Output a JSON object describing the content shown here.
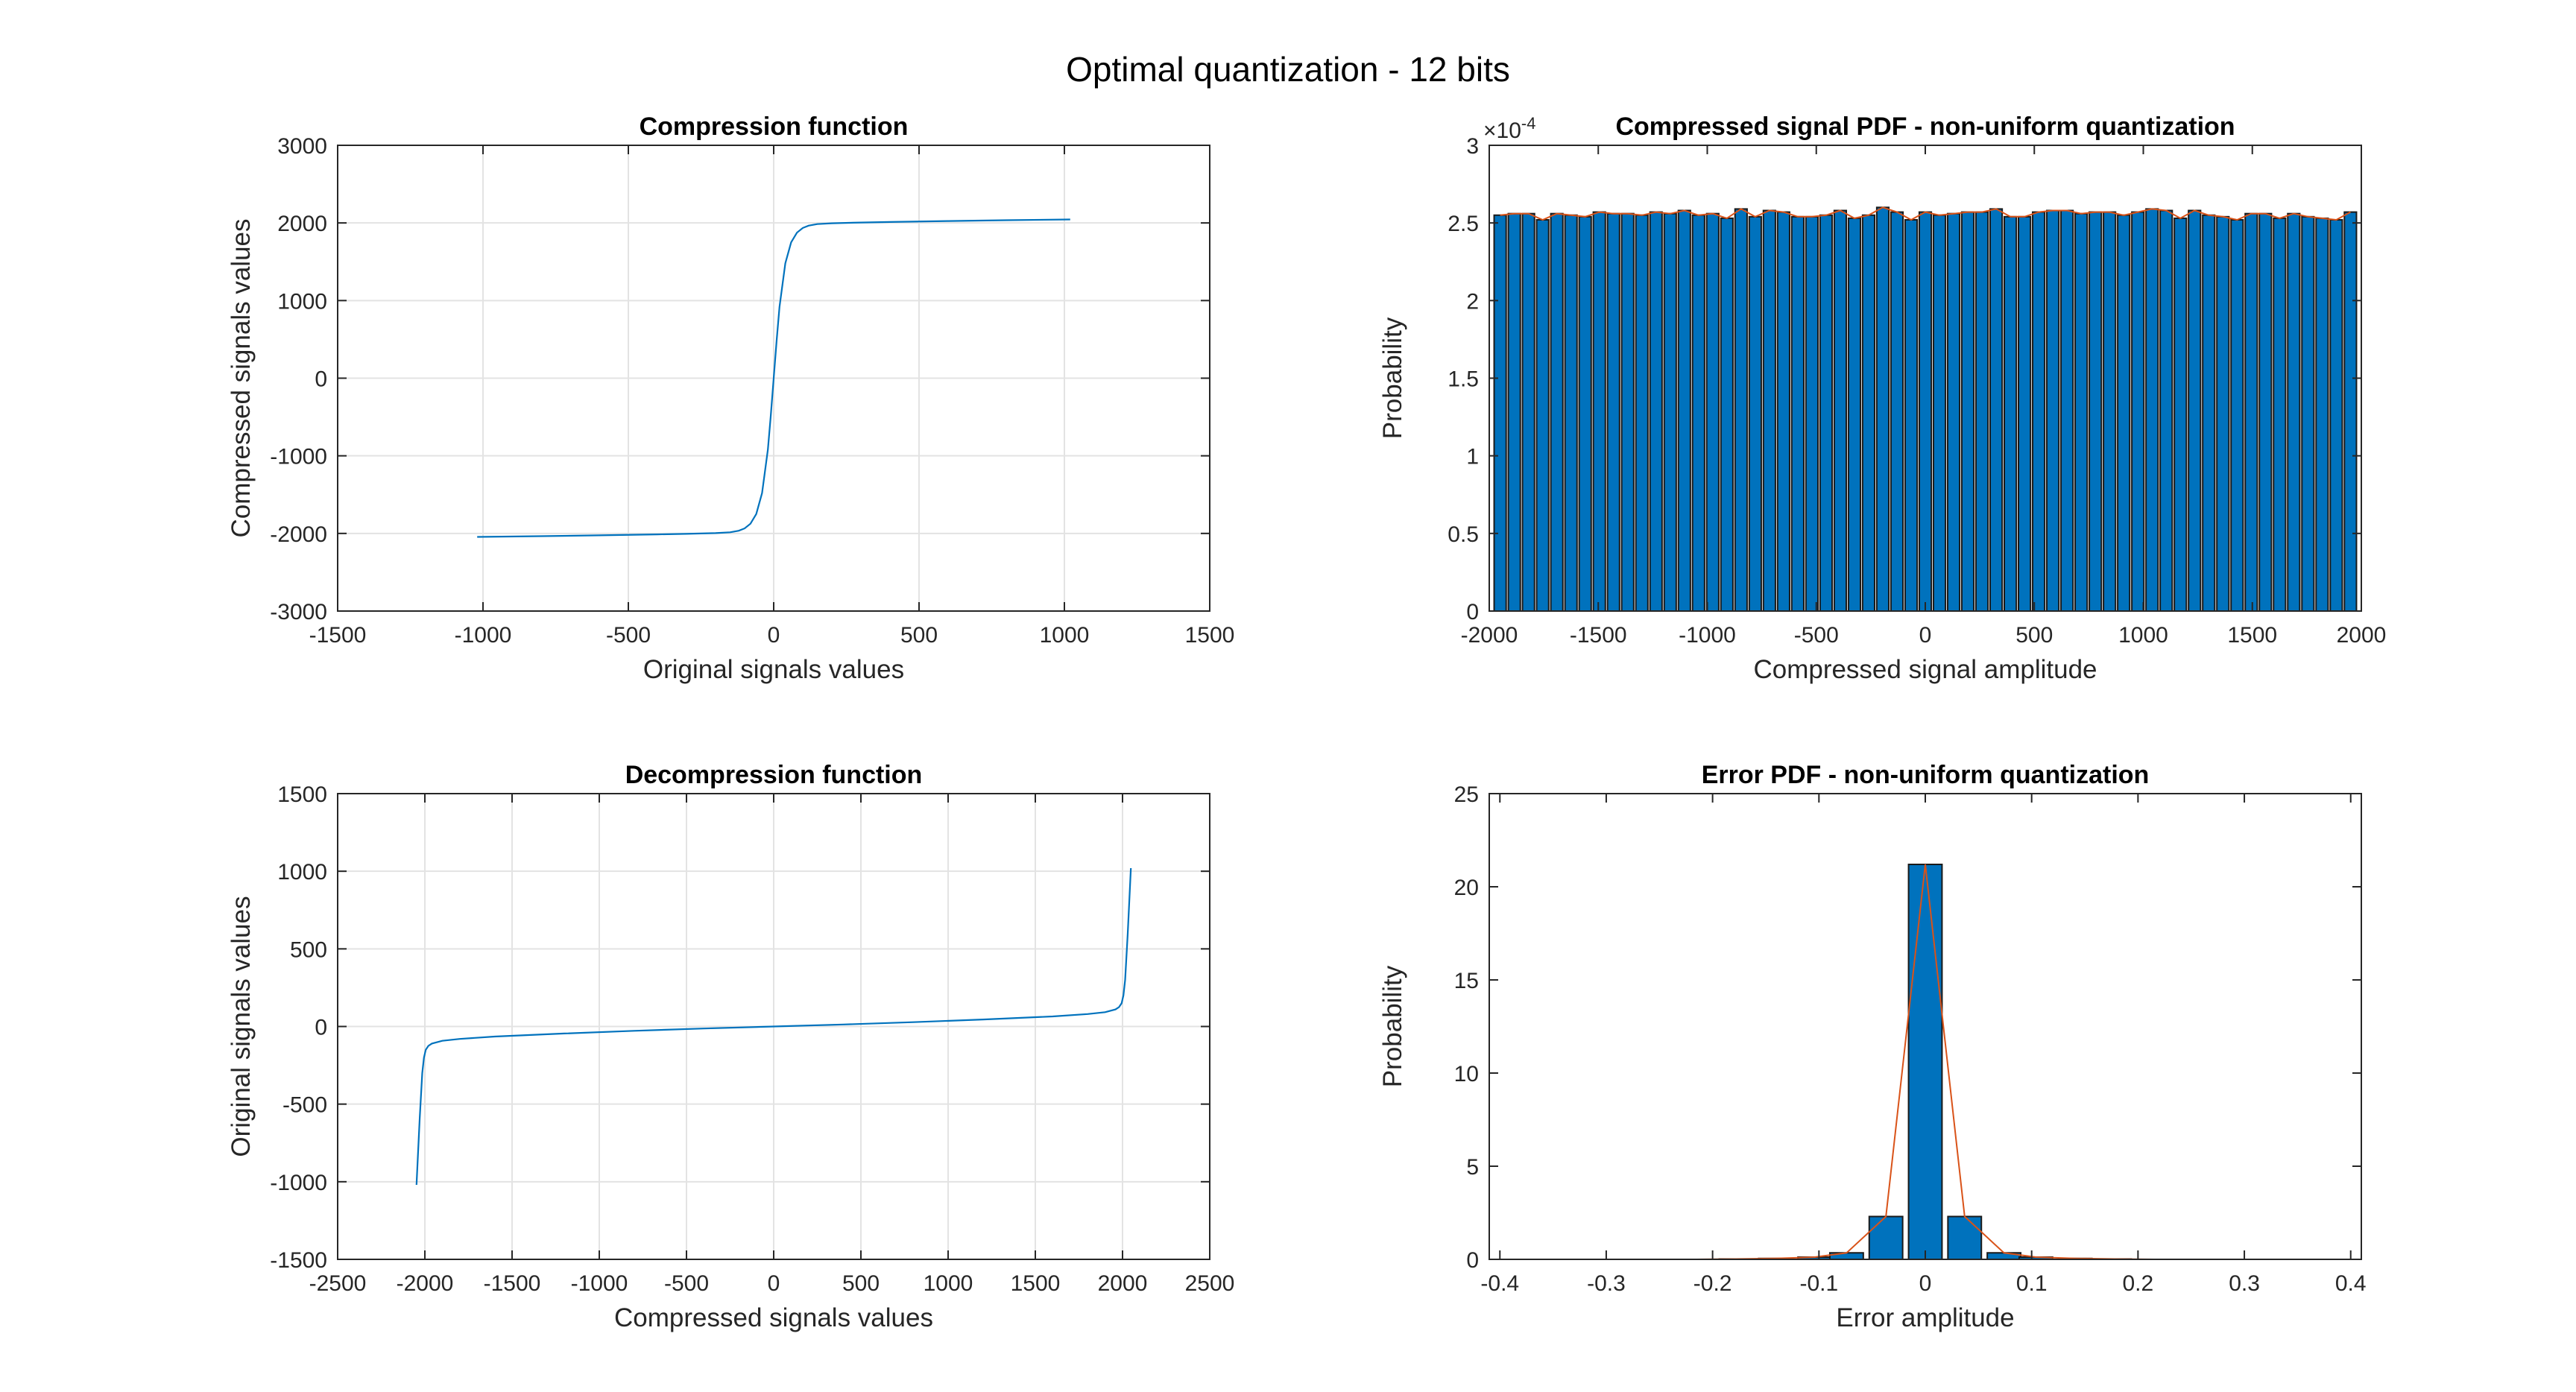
{
  "figure": {
    "title": "Optimal quantization - 12 bits"
  },
  "chart_data": [
    {
      "id": "compression",
      "type": "line",
      "title": "Compression function",
      "xlabel": "Original signals values",
      "ylabel": "Compressed signals values",
      "xlim": [
        -1500,
        1500
      ],
      "ylim": [
        -3000,
        3000
      ],
      "xticks": [
        -1500,
        -1000,
        -500,
        0,
        500,
        1000,
        1500
      ],
      "yticks": [
        -3000,
        -2000,
        -1000,
        0,
        1000,
        2000,
        3000
      ],
      "grid": true,
      "line_color": "#0072BD",
      "series": [
        {
          "x": [
            -1020,
            -800,
            -600,
            -400,
            -300,
            -200,
            -150,
            -120,
            -100,
            -80,
            -60,
            -40,
            -20,
            -10,
            0,
            10,
            20,
            40,
            60,
            80,
            100,
            120,
            150,
            200,
            300,
            400,
            600,
            800,
            1020
          ],
          "y": [
            -2045,
            -2035,
            -2025,
            -2012,
            -2005,
            -1996,
            -1985,
            -1965,
            -1935,
            -1875,
            -1750,
            -1480,
            -920,
            -480,
            0,
            480,
            920,
            1480,
            1750,
            1875,
            1935,
            1965,
            1985,
            1996,
            2005,
            2012,
            2025,
            2035,
            2045
          ]
        }
      ]
    },
    {
      "id": "compressed-pdf",
      "type": "bar",
      "title": "Compressed signal PDF - non-uniform quantization",
      "xlabel": "Compressed signal amplitude",
      "ylabel": "Probability",
      "xlim": [
        -2000,
        2000
      ],
      "ylim": [
        0,
        3
      ],
      "y_exponent": "-4",
      "xticks": [
        -2000,
        -1500,
        -1000,
        -500,
        0,
        500,
        1000,
        1500,
        2000
      ],
      "yticks": [
        0,
        0.5,
        1,
        1.5,
        2,
        2.5,
        3
      ],
      "grid": false,
      "bar_color": "#0072BD",
      "line_color": "#D95319",
      "bin_start": -1950,
      "bin_width": 65,
      "values": [
        2.55,
        2.56,
        2.56,
        2.52,
        2.56,
        2.55,
        2.54,
        2.57,
        2.56,
        2.56,
        2.55,
        2.57,
        2.56,
        2.58,
        2.55,
        2.56,
        2.53,
        2.59,
        2.54,
        2.58,
        2.57,
        2.54,
        2.54,
        2.55,
        2.58,
        2.53,
        2.55,
        2.6,
        2.57,
        2.52,
        2.57,
        2.55,
        2.56,
        2.57,
        2.57,
        2.59,
        2.54,
        2.54,
        2.57,
        2.58,
        2.58,
        2.56,
        2.57,
        2.57,
        2.55,
        2.57,
        2.59,
        2.58,
        2.53,
        2.58,
        2.55,
        2.54,
        2.52,
        2.56,
        2.56,
        2.53,
        2.56,
        2.54,
        2.53,
        2.52,
        2.57
      ]
    },
    {
      "id": "decompression",
      "type": "line",
      "title": "Decompression function",
      "xlabel": "Compressed signals values",
      "ylabel": "Original signals values",
      "xlim": [
        -2500,
        2500
      ],
      "ylim": [
        -1500,
        1500
      ],
      "xticks": [
        -2500,
        -2000,
        -1500,
        -1000,
        -500,
        0,
        500,
        1000,
        1500,
        2000,
        2500
      ],
      "yticks": [
        -1500,
        -1000,
        -500,
        0,
        500,
        1000,
        1500
      ],
      "grid": true,
      "line_color": "#0072BD",
      "series": [
        {
          "x": [
            -2048,
            -2030,
            -2015,
            -2005,
            -1995,
            -1980,
            -1960,
            -1900,
            -1800,
            -1600,
            -1200,
            -800,
            -400,
            0,
            400,
            800,
            1200,
            1600,
            1800,
            1900,
            1960,
            1980,
            1995,
            2005,
            2015,
            2030,
            2048
          ],
          "y": [
            -1020,
            -600,
            -300,
            -200,
            -150,
            -125,
            -110,
            -92,
            -80,
            -65,
            -45,
            -28,
            -13,
            0,
            13,
            28,
            45,
            65,
            80,
            92,
            110,
            125,
            150,
            200,
            300,
            600,
            1020
          ]
        }
      ]
    },
    {
      "id": "error-pdf",
      "type": "bar",
      "title": "Error PDF - non-uniform quantization",
      "xlabel": "Error amplitude",
      "ylabel": "Probability",
      "xlim": [
        -0.41,
        0.41
      ],
      "ylim": [
        0,
        25
      ],
      "xticks": [
        -0.4,
        -0.3,
        -0.2,
        -0.1,
        0,
        0.1,
        0.2,
        0.3,
        0.4
      ],
      "yticks": [
        0,
        5,
        10,
        15,
        20,
        25
      ],
      "grid": false,
      "bar_color": "#0072BD",
      "line_color": "#D95319",
      "bin_width": 0.037,
      "centers": [
        -0.4,
        -0.363,
        -0.326,
        -0.289,
        -0.252,
        -0.215,
        -0.178,
        -0.141,
        -0.104,
        -0.074,
        -0.037,
        0,
        0.037,
        0.074,
        0.104,
        0.141,
        0.178,
        0.215,
        0.252,
        0.289,
        0.326,
        0.363,
        0.4
      ],
      "values": [
        0,
        0,
        0,
        0,
        0,
        0,
        0.02,
        0.05,
        0.12,
        0.35,
        2.3,
        21.2,
        2.3,
        0.35,
        0.12,
        0.05,
        0.02,
        0,
        0,
        0,
        0,
        0,
        0
      ]
    }
  ]
}
